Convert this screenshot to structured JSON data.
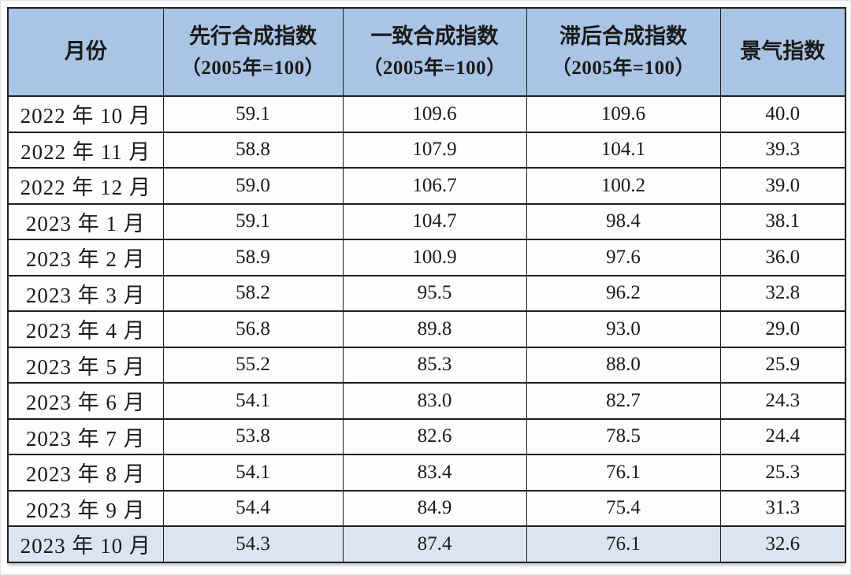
{
  "chart_data": {
    "type": "table",
    "title": "",
    "columns": [
      {
        "key": "month",
        "label": "月份",
        "sublabel": ""
      },
      {
        "key": "leading",
        "label": "先行合成指数",
        "sublabel": "（2005年=100）"
      },
      {
        "key": "coincident",
        "label": "一致合成指数",
        "sublabel": "（2005年=100）"
      },
      {
        "key": "lagging",
        "label": "滞后合成指数",
        "sublabel": "（2005年=100）"
      },
      {
        "key": "prosperity",
        "label": "景气指数",
        "sublabel": ""
      }
    ],
    "rows": [
      [
        "2022 年 10 月",
        "59.1",
        "109.6",
        "109.6",
        "40.0"
      ],
      [
        "2022 年 11 月",
        "58.8",
        "107.9",
        "104.1",
        "39.3"
      ],
      [
        "2022 年 12 月",
        "59.0",
        "106.7",
        "100.2",
        "39.0"
      ],
      [
        "2023 年 1 月",
        "59.1",
        "104.7",
        "98.4",
        "38.1"
      ],
      [
        "2023 年 2 月",
        "58.9",
        "100.9",
        "97.6",
        "36.0"
      ],
      [
        "2023 年 3 月",
        "58.2",
        "95.5",
        "96.2",
        "32.8"
      ],
      [
        "2023 年 4 月",
        "56.8",
        "89.8",
        "93.0",
        "29.0"
      ],
      [
        "2023 年 5 月",
        "55.2",
        "85.3",
        "88.0",
        "25.9"
      ],
      [
        "2023 年 6 月",
        "54.1",
        "83.0",
        "82.7",
        "24.3"
      ],
      [
        "2023 年 7 月",
        "53.8",
        "82.6",
        "78.5",
        "24.4"
      ],
      [
        "2023 年 8 月",
        "54.1",
        "83.4",
        "76.1",
        "25.3"
      ],
      [
        "2023 年 9 月",
        "54.4",
        "84.9",
        "75.4",
        "31.3"
      ],
      [
        "2023 年 10 月",
        "54.3",
        "87.4",
        "76.1",
        "32.6"
      ]
    ],
    "highlighted_row_index": 12
  },
  "colors": {
    "header_bg": "#a9c4e4",
    "highlight_bg": "#dbe5f1",
    "border": "#1f1f1f",
    "text": "#1a1a1a",
    "page_bg": "#ffffff"
  }
}
